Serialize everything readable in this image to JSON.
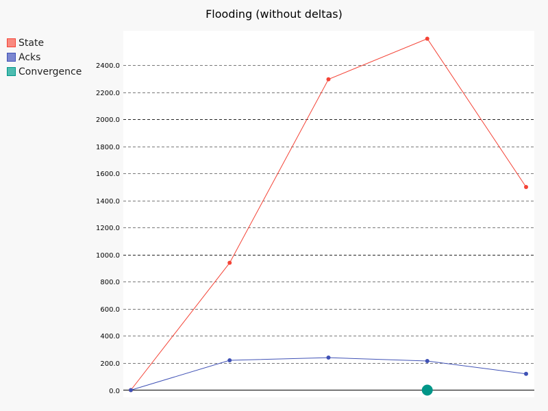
{
  "chart_data": {
    "type": "line",
    "title": "Flooding (without deltas)",
    "xlabel": "",
    "ylabel": "",
    "x": [
      0,
      1,
      2,
      3,
      4
    ],
    "ylim": [
      0,
      2600
    ],
    "y_ticks": [
      "0.0",
      "200.0",
      "400.0",
      "600.0",
      "800.0",
      "1000.0",
      "1200.0",
      "1400.0",
      "1600.0",
      "1800.0",
      "2000.0",
      "2200.0",
      "2400.0"
    ],
    "major_gridlines": [
      1000,
      2000
    ],
    "grid": true,
    "legend_position": "top-left",
    "series": [
      {
        "name": "State",
        "color": "#f44336",
        "legend_color": "#f98a80",
        "values": [
          0,
          940,
          2295,
          2595,
          1500
        ]
      },
      {
        "name": "Acks",
        "color": "#3f51b5",
        "legend_color": "#7b86d0",
        "values": [
          0,
          220,
          240,
          215,
          120
        ]
      },
      {
        "name": "Convergence",
        "color": "#009688",
        "legend_color": "#4dbcb0",
        "points": [
          {
            "x": 3,
            "y": 0
          }
        ]
      }
    ]
  }
}
